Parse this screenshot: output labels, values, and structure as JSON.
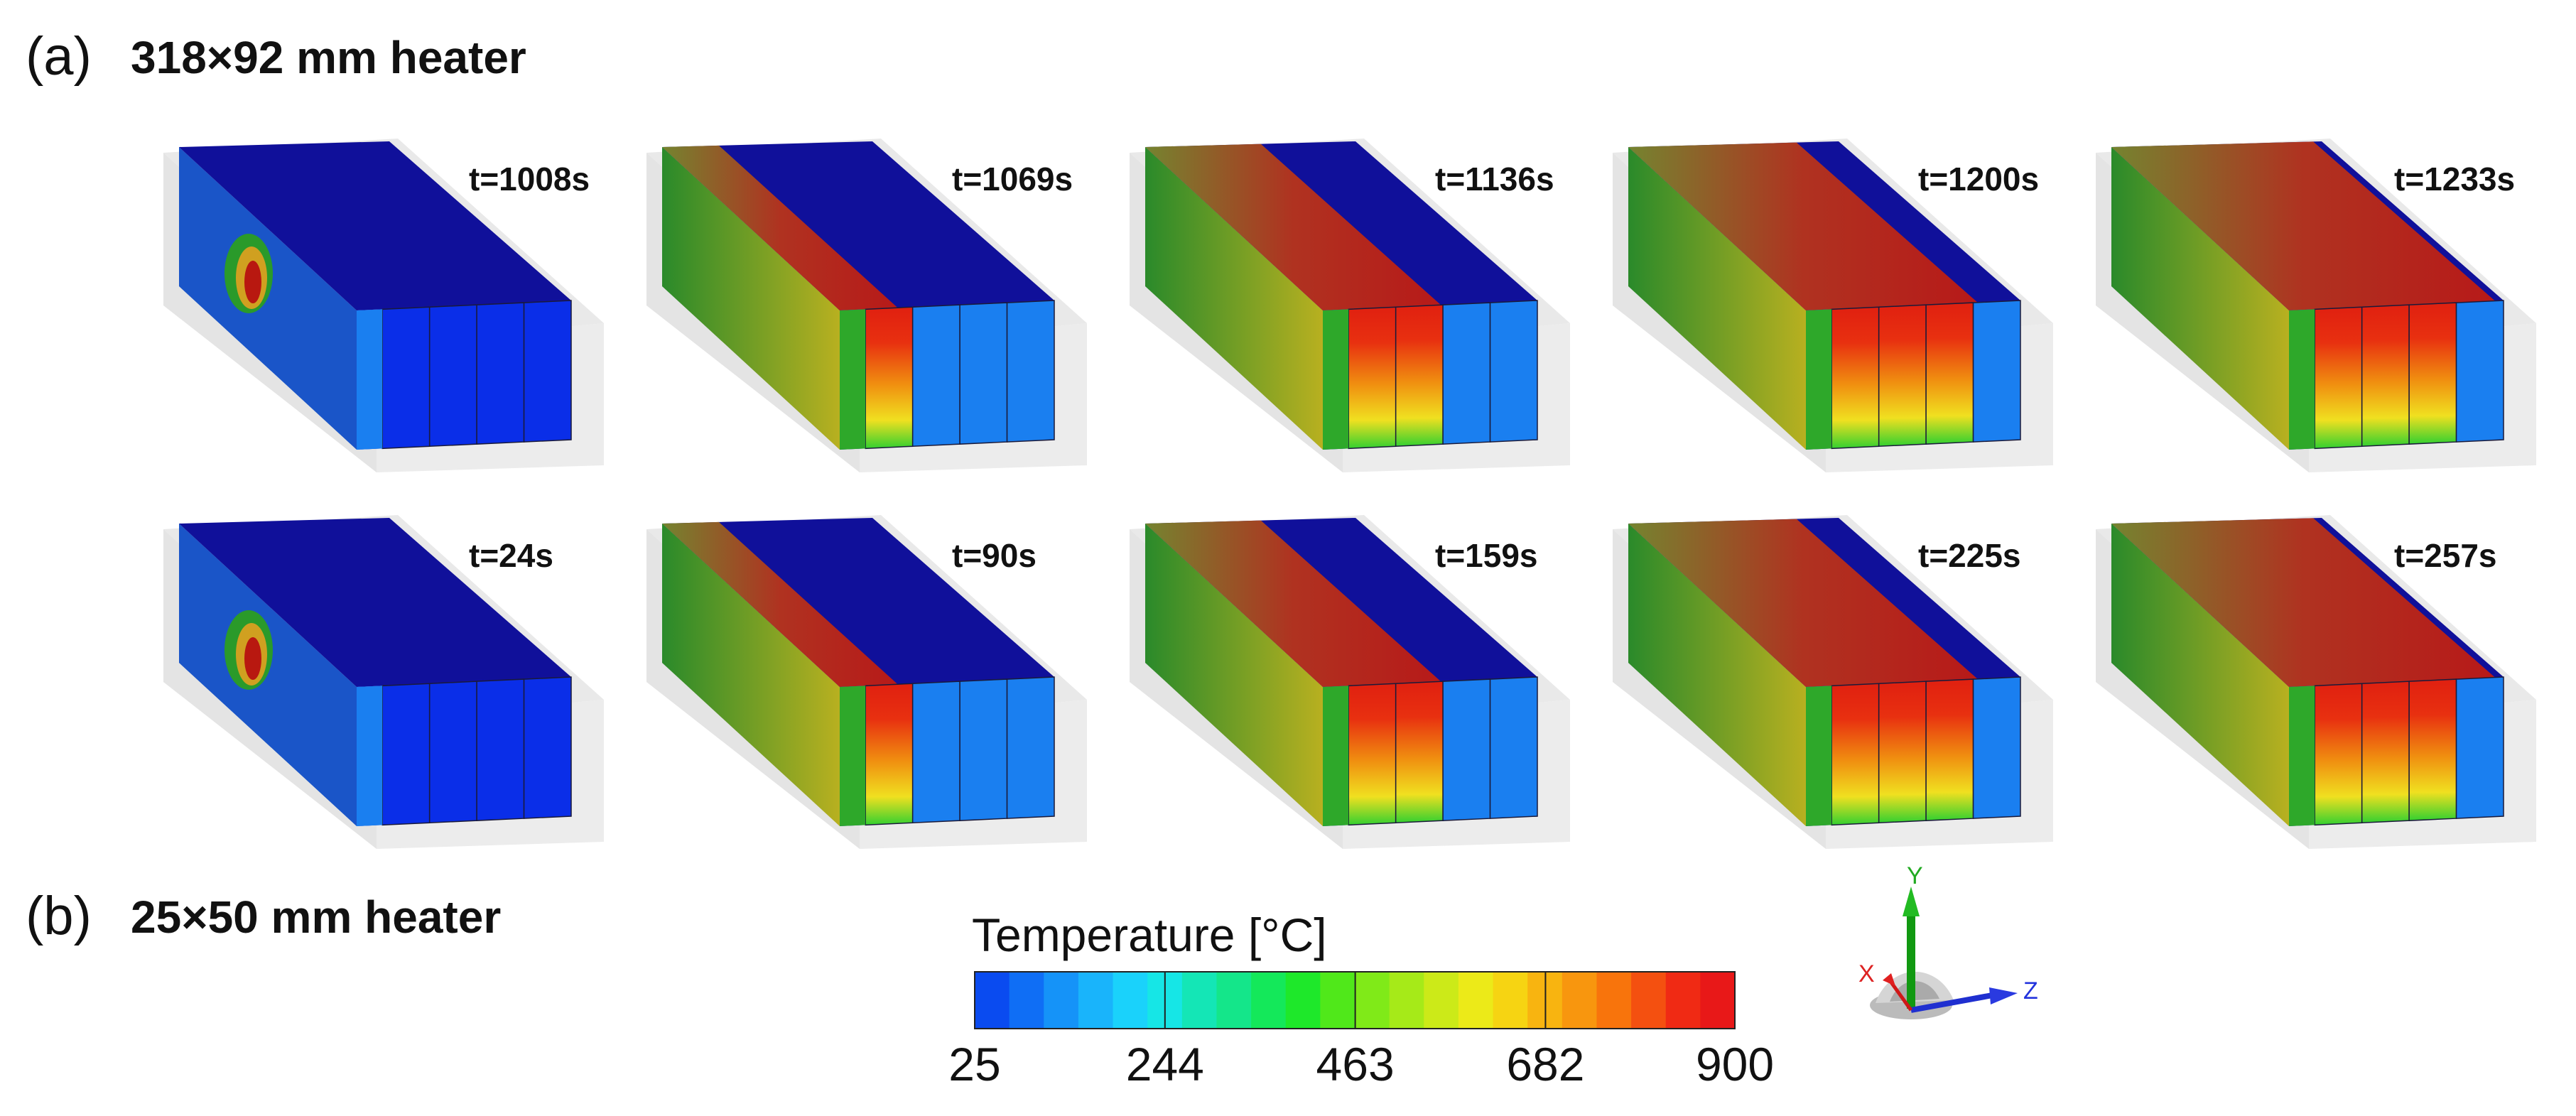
{
  "panels": [
    {
      "letter": "(a)",
      "title": "318×92 mm heater",
      "frames": [
        {
          "time": "t=1008s",
          "stage": 0
        },
        {
          "time": "t=1069s",
          "stage": 1
        },
        {
          "time": "t=1136s",
          "stage": 2
        },
        {
          "time": "t=1200s",
          "stage": 3
        },
        {
          "time": "t=1233s",
          "stage": 4
        }
      ]
    },
    {
      "letter": "(b)",
      "title": "25×50 mm heater",
      "frames": [
        {
          "time": "t=24s",
          "stage": 0
        },
        {
          "time": "t=90s",
          "stage": 1
        },
        {
          "time": "t=159s",
          "stage": 2
        },
        {
          "time": "t=225s",
          "stage": 3
        },
        {
          "time": "t=257s",
          "stage": 4
        }
      ]
    }
  ],
  "colorbar": {
    "title": "Temperature [°C]",
    "ticks": [
      "25",
      "244",
      "463",
      "682",
      "900"
    ],
    "tick_values": [
      25,
      244,
      463,
      682,
      900
    ],
    "colors": [
      "#0a4bf0",
      "#0f6ef5",
      "#1593f8",
      "#19b4fb",
      "#1ad2fb",
      "#16e6e6",
      "#14e6b6",
      "#14e68a",
      "#14e85a",
      "#1ee82a",
      "#50e81a",
      "#80ea18",
      "#a6ea18",
      "#ccea18",
      "#ecea18",
      "#f6d412",
      "#f8b410",
      "#f8960e",
      "#f8740c",
      "#f45010",
      "#f02a14",
      "#e81818"
    ]
  },
  "triad": {
    "y": "Y",
    "x": "X",
    "z": "Z"
  },
  "palette": {
    "cold": "#10109a",
    "blue": "#0a2ee8",
    "lightblue": "#1a7ff0",
    "green": "#3aa830",
    "hot": "#c01a10",
    "orange": "#f08010",
    "yellow": "#f0e020"
  }
}
